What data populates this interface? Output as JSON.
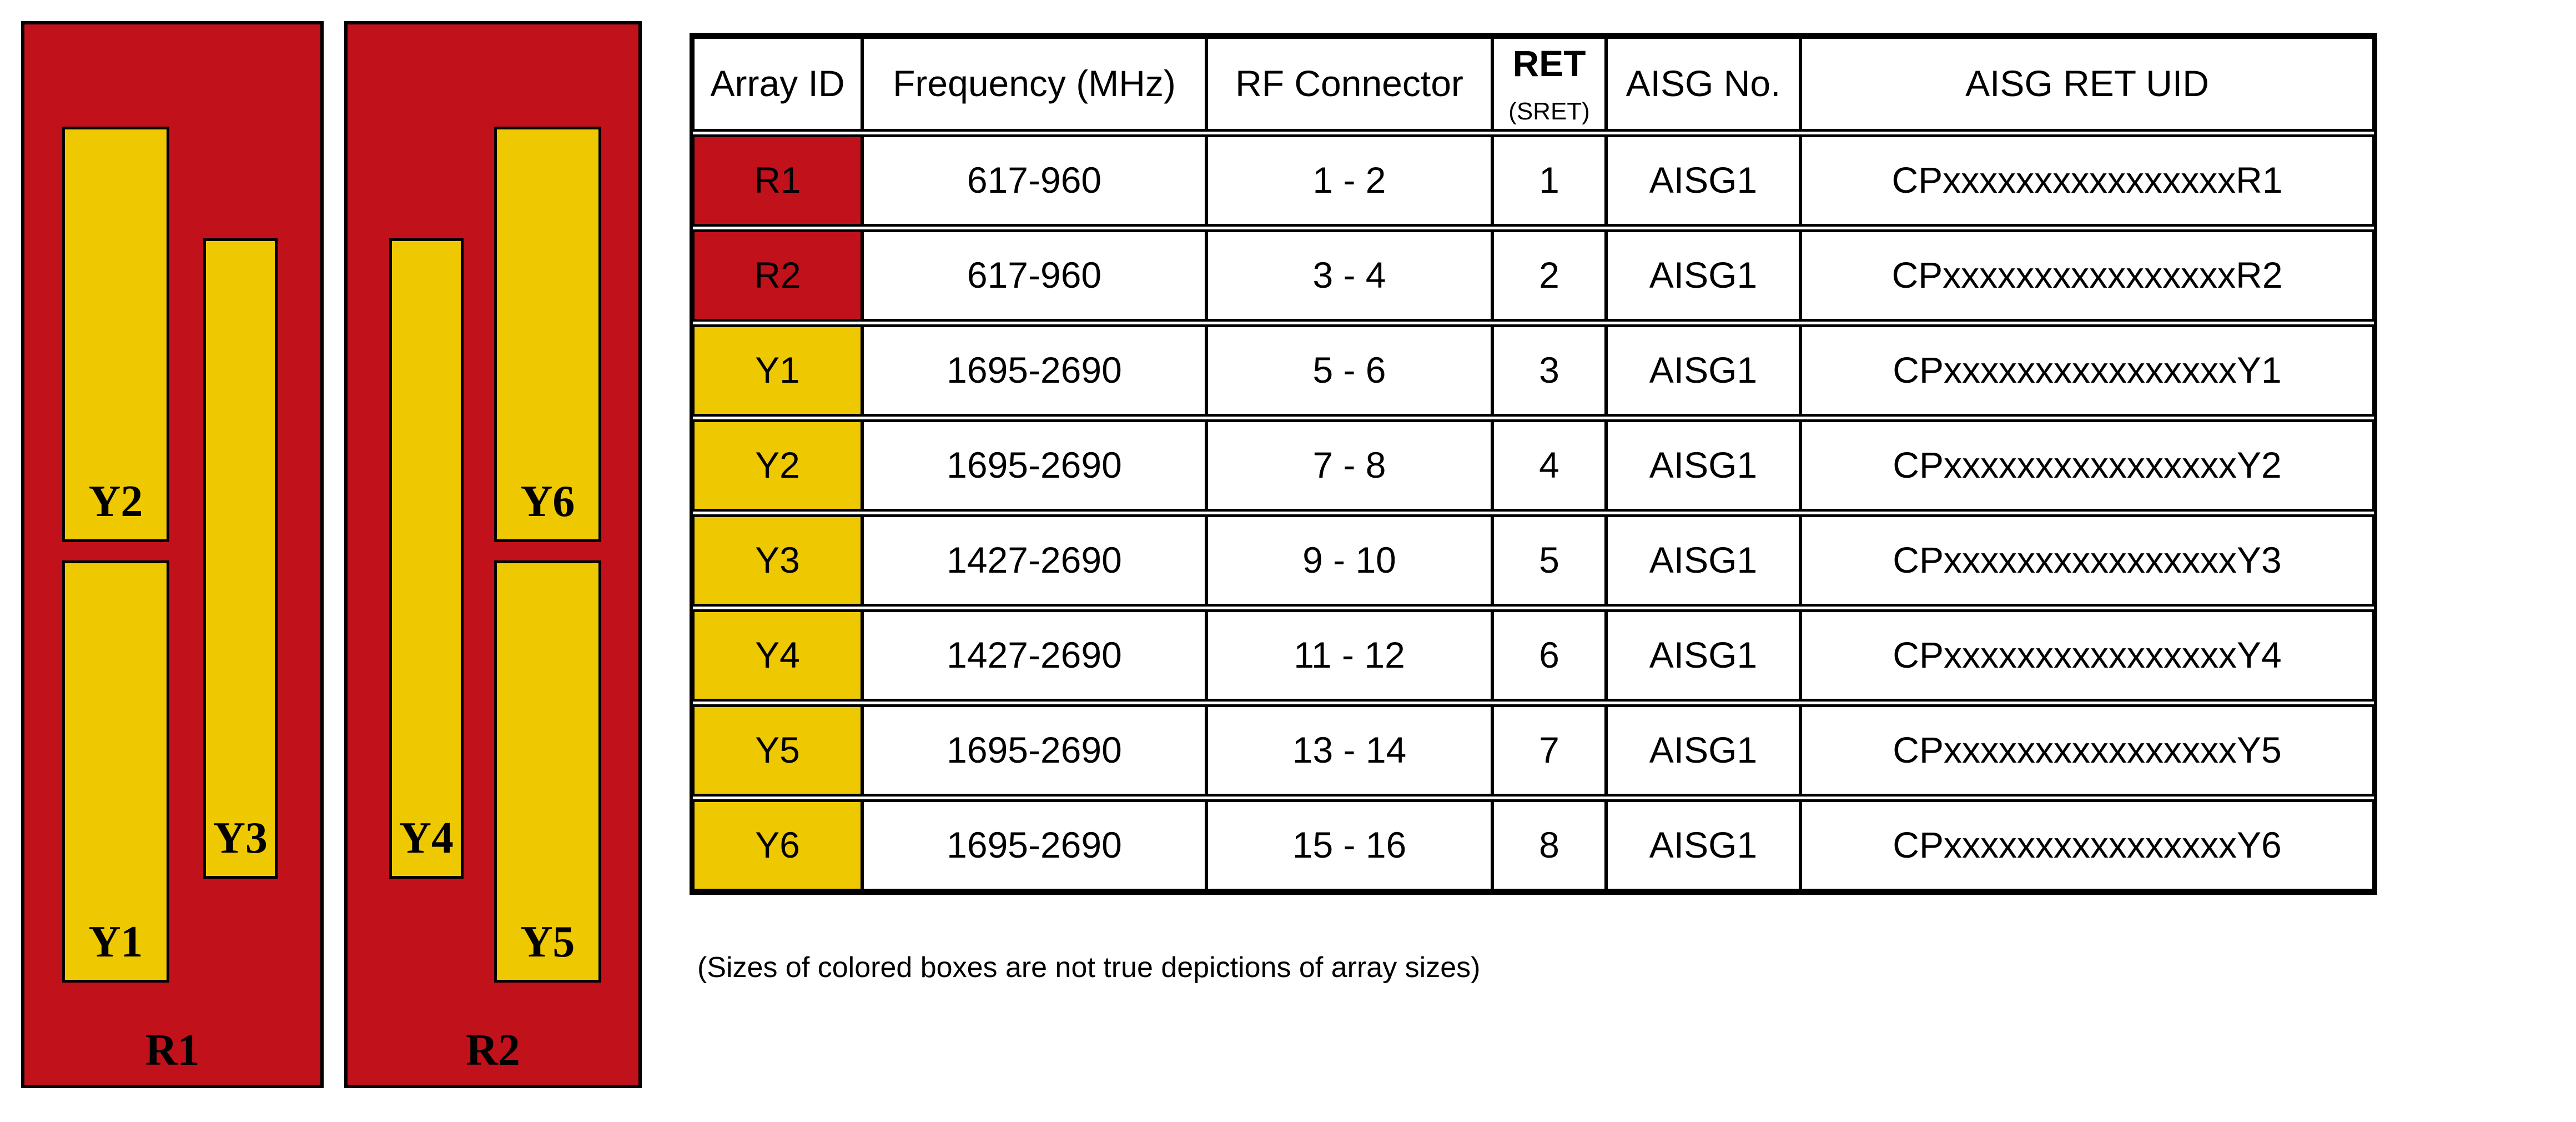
{
  "diagram": {
    "panels": [
      {
        "label": "R1",
        "boxes": [
          {
            "label": "Y2"
          },
          {
            "label": "Y1"
          },
          {
            "label": "Y3"
          }
        ]
      },
      {
        "label": "R2",
        "boxes": [
          {
            "label": "Y6"
          },
          {
            "label": "Y5"
          },
          {
            "label": "Y4"
          }
        ]
      }
    ],
    "colors": {
      "panel_red": "#C1121B",
      "box_yellow": "#EEC801",
      "outline": "#000000"
    }
  },
  "table": {
    "headers": {
      "array_id": "Array ID",
      "frequency": "Frequency (MHz)",
      "rf_connector": "RF Connector",
      "ret_main": "RET",
      "ret_sub": "(SRET)",
      "aisg_no": "AISG No.",
      "aisg_ret_uid": "AISG RET UID"
    },
    "rows": [
      {
        "id": "R1",
        "id_color": "red",
        "frequency": "617-960",
        "rf_connector": "1 - 2",
        "ret": "1",
        "aisg_no": "AISG1",
        "aisg_ret_uid": "CPxxxxxxxxxxxxxxxxR1"
      },
      {
        "id": "R2",
        "id_color": "red",
        "frequency": "617-960",
        "rf_connector": "3 - 4",
        "ret": "2",
        "aisg_no": "AISG1",
        "aisg_ret_uid": "CPxxxxxxxxxxxxxxxxR2"
      },
      {
        "id": "Y1",
        "id_color": "yellow",
        "frequency": "1695-2690",
        "rf_connector": "5 - 6",
        "ret": "3",
        "aisg_no": "AISG1",
        "aisg_ret_uid": "CPxxxxxxxxxxxxxxxxY1"
      },
      {
        "id": "Y2",
        "id_color": "yellow",
        "frequency": "1695-2690",
        "rf_connector": "7 - 8",
        "ret": "4",
        "aisg_no": "AISG1",
        "aisg_ret_uid": "CPxxxxxxxxxxxxxxxxY2"
      },
      {
        "id": "Y3",
        "id_color": "yellow",
        "frequency": "1427-2690",
        "rf_connector": "9 - 10",
        "ret": "5",
        "aisg_no": "AISG1",
        "aisg_ret_uid": "CPxxxxxxxxxxxxxxxxY3"
      },
      {
        "id": "Y4",
        "id_color": "yellow",
        "frequency": "1427-2690",
        "rf_connector": "11 - 12",
        "ret": "6",
        "aisg_no": "AISG1",
        "aisg_ret_uid": "CPxxxxxxxxxxxxxxxxY4"
      },
      {
        "id": "Y5",
        "id_color": "yellow",
        "frequency": "1695-2690",
        "rf_connector": "13 - 14",
        "ret": "7",
        "aisg_no": "AISG1",
        "aisg_ret_uid": "CPxxxxxxxxxxxxxxxxY5"
      },
      {
        "id": "Y6",
        "id_color": "yellow",
        "frequency": "1695-2690",
        "rf_connector": "15 - 16",
        "ret": "8",
        "aisg_no": "AISG1",
        "aisg_ret_uid": "CPxxxxxxxxxxxxxxxxY6"
      }
    ]
  },
  "footnote": "(Sizes of colored boxes are not true depictions of array sizes)"
}
